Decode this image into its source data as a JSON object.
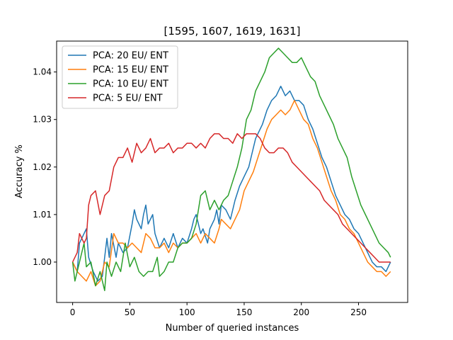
{
  "chart_data": {
    "type": "line",
    "title": "[1595, 1607, 1619, 1631]",
    "xlabel": "Number of queried instances",
    "ylabel": "Accuracy %",
    "xlim": [
      -14,
      293
    ],
    "ylim": [
      0.9915,
      1.0465
    ],
    "xticks": [
      0,
      50,
      100,
      150,
      200,
      250
    ],
    "yticks": [
      1.0,
      1.01,
      1.02,
      1.03,
      1.04
    ],
    "ytick_labels": [
      "1.00",
      "1.01",
      "1.02",
      "1.03",
      "1.04"
    ],
    "grid": false,
    "legend_position": "top-left",
    "series": [
      {
        "name": "PCA: 20 EU/ ENT",
        "color": "#1f77b4",
        "points": [
          [
            0,
            1.0
          ],
          [
            4,
            0.998
          ],
          [
            6,
            1.004
          ],
          [
            10,
            1.006
          ],
          [
            12,
            1.007
          ],
          [
            14,
            1.001
          ],
          [
            18,
            0.998
          ],
          [
            22,
            0.996
          ],
          [
            26,
            0.997
          ],
          [
            30,
            1.005
          ],
          [
            32,
            1.001
          ],
          [
            34,
            1.006
          ],
          [
            38,
            1.001
          ],
          [
            40,
            1.004
          ],
          [
            44,
            1.002
          ],
          [
            48,
            1.003
          ],
          [
            52,
            1.008
          ],
          [
            54,
            1.011
          ],
          [
            56,
            1.009
          ],
          [
            60,
            1.007
          ],
          [
            62,
            1.01
          ],
          [
            64,
            1.012
          ],
          [
            66,
            1.008
          ],
          [
            70,
            1.01
          ],
          [
            72,
            1.006
          ],
          [
            76,
            1.003
          ],
          [
            80,
            1.005
          ],
          [
            84,
            1.003
          ],
          [
            88,
            1.006
          ],
          [
            92,
            1.003
          ],
          [
            96,
            1.005
          ],
          [
            100,
            1.004
          ],
          [
            104,
            1.007
          ],
          [
            106,
            1.009
          ],
          [
            108,
            1.01
          ],
          [
            112,
            1.006
          ],
          [
            114,
            1.007
          ],
          [
            118,
            1.004
          ],
          [
            120,
            1.007
          ],
          [
            124,
            1.009
          ],
          [
            126,
            1.011
          ],
          [
            128,
            1.008
          ],
          [
            130,
            1.012
          ],
          [
            134,
            1.011
          ],
          [
            138,
            1.009
          ],
          [
            142,
            1.013
          ],
          [
            146,
            1.016
          ],
          [
            150,
            1.018
          ],
          [
            154,
            1.02
          ],
          [
            156,
            1.022
          ],
          [
            160,
            1.026
          ],
          [
            162,
            1.027
          ],
          [
            166,
            1.029
          ],
          [
            170,
            1.032
          ],
          [
            174,
            1.034
          ],
          [
            178,
            1.035
          ],
          [
            182,
            1.037
          ],
          [
            186,
            1.035
          ],
          [
            190,
            1.036
          ],
          [
            194,
            1.034
          ],
          [
            198,
            1.034
          ],
          [
            202,
            1.033
          ],
          [
            206,
            1.03
          ],
          [
            210,
            1.028
          ],
          [
            214,
            1.025
          ],
          [
            218,
            1.022
          ],
          [
            222,
            1.02
          ],
          [
            226,
            1.017
          ],
          [
            230,
            1.014
          ],
          [
            234,
            1.012
          ],
          [
            238,
            1.01
          ],
          [
            242,
            1.009
          ],
          [
            246,
            1.007
          ],
          [
            250,
            1.006
          ],
          [
            254,
            1.004
          ],
          [
            258,
            1.002
          ],
          [
            262,
            1.0
          ],
          [
            266,
            0.999
          ],
          [
            270,
            0.999
          ],
          [
            274,
            0.998
          ],
          [
            278,
            1.0
          ]
        ]
      },
      {
        "name": "PCA: 15 EU/ ENT",
        "color": "#ff7f0e",
        "points": [
          [
            0,
            1.0
          ],
          [
            4,
            0.998
          ],
          [
            8,
            0.997
          ],
          [
            12,
            0.996
          ],
          [
            16,
            0.998
          ],
          [
            20,
            0.995
          ],
          [
            24,
            0.996
          ],
          [
            28,
            1.0
          ],
          [
            32,
            0.999
          ],
          [
            36,
            1.006
          ],
          [
            40,
            1.004
          ],
          [
            44,
            1.004
          ],
          [
            48,
            1.003
          ],
          [
            52,
            1.004
          ],
          [
            56,
            1.003
          ],
          [
            60,
            1.002
          ],
          [
            64,
            1.006
          ],
          [
            68,
            1.005
          ],
          [
            72,
            1.003
          ],
          [
            76,
            1.003
          ],
          [
            80,
            1.004
          ],
          [
            84,
            1.002
          ],
          [
            88,
            1.004
          ],
          [
            92,
            1.003
          ],
          [
            96,
            1.004
          ],
          [
            100,
            1.004
          ],
          [
            104,
            1.005
          ],
          [
            108,
            1.006
          ],
          [
            112,
            1.004
          ],
          [
            116,
            1.006
          ],
          [
            120,
            1.005
          ],
          [
            124,
            1.004
          ],
          [
            128,
            1.007
          ],
          [
            130,
            1.009
          ],
          [
            134,
            1.008
          ],
          [
            138,
            1.007
          ],
          [
            142,
            1.009
          ],
          [
            146,
            1.011
          ],
          [
            150,
            1.015
          ],
          [
            154,
            1.017
          ],
          [
            158,
            1.019
          ],
          [
            162,
            1.022
          ],
          [
            166,
            1.025
          ],
          [
            170,
            1.028
          ],
          [
            174,
            1.03
          ],
          [
            178,
            1.031
          ],
          [
            182,
            1.032
          ],
          [
            186,
            1.031
          ],
          [
            190,
            1.032
          ],
          [
            194,
            1.034
          ],
          [
            198,
            1.032
          ],
          [
            202,
            1.03
          ],
          [
            206,
            1.029
          ],
          [
            210,
            1.026
          ],
          [
            214,
            1.024
          ],
          [
            218,
            1.021
          ],
          [
            222,
            1.018
          ],
          [
            226,
            1.015
          ],
          [
            230,
            1.013
          ],
          [
            234,
            1.01
          ],
          [
            238,
            1.009
          ],
          [
            242,
            1.007
          ],
          [
            246,
            1.006
          ],
          [
            250,
            1.004
          ],
          [
            254,
            1.002
          ],
          [
            258,
            1.0
          ],
          [
            262,
            0.999
          ],
          [
            266,
            0.998
          ],
          [
            270,
            0.998
          ],
          [
            274,
            0.997
          ],
          [
            278,
            0.998
          ]
        ]
      },
      {
        "name": "PCA: 10 EU/ ENT",
        "color": "#2ca02c",
        "points": [
          [
            0,
            1.0
          ],
          [
            2,
            0.996
          ],
          [
            6,
            1.0
          ],
          [
            10,
            1.004
          ],
          [
            12,
            0.999
          ],
          [
            16,
            1.0
          ],
          [
            20,
            0.995
          ],
          [
            24,
            0.998
          ],
          [
            28,
            0.994
          ],
          [
            30,
            1.0
          ],
          [
            34,
            0.997
          ],
          [
            38,
            1.0
          ],
          [
            42,
            0.998
          ],
          [
            46,
            1.004
          ],
          [
            50,
            0.999
          ],
          [
            54,
            1.001
          ],
          [
            58,
            0.998
          ],
          [
            62,
            0.997
          ],
          [
            66,
            0.998
          ],
          [
            70,
            0.998
          ],
          [
            74,
            1.001
          ],
          [
            76,
            0.997
          ],
          [
            80,
            0.998
          ],
          [
            84,
            1.0
          ],
          [
            88,
            1.0
          ],
          [
            92,
            1.003
          ],
          [
            96,
            1.004
          ],
          [
            100,
            1.004
          ],
          [
            104,
            1.005
          ],
          [
            108,
            1.008
          ],
          [
            112,
            1.014
          ],
          [
            116,
            1.015
          ],
          [
            120,
            1.011
          ],
          [
            124,
            1.013
          ],
          [
            128,
            1.011
          ],
          [
            132,
            1.013
          ],
          [
            136,
            1.014
          ],
          [
            140,
            1.017
          ],
          [
            144,
            1.02
          ],
          [
            148,
            1.024
          ],
          [
            152,
            1.03
          ],
          [
            156,
            1.032
          ],
          [
            160,
            1.036
          ],
          [
            164,
            1.038
          ],
          [
            168,
            1.04
          ],
          [
            172,
            1.043
          ],
          [
            176,
            1.044
          ],
          [
            180,
            1.045
          ],
          [
            184,
            1.044
          ],
          [
            188,
            1.043
          ],
          [
            192,
            1.042
          ],
          [
            196,
            1.042
          ],
          [
            200,
            1.043
          ],
          [
            204,
            1.041
          ],
          [
            208,
            1.039
          ],
          [
            212,
            1.038
          ],
          [
            216,
            1.035
          ],
          [
            220,
            1.033
          ],
          [
            224,
            1.031
          ],
          [
            228,
            1.029
          ],
          [
            232,
            1.026
          ],
          [
            236,
            1.024
          ],
          [
            240,
            1.022
          ],
          [
            244,
            1.018
          ],
          [
            248,
            1.015
          ],
          [
            252,
            1.012
          ],
          [
            256,
            1.01
          ],
          [
            260,
            1.008
          ],
          [
            264,
            1.006
          ],
          [
            268,
            1.004
          ],
          [
            272,
            1.003
          ],
          [
            276,
            1.002
          ],
          [
            278,
            1.001
          ]
        ]
      },
      {
        "name": "PCA: 5 EU/ ENT",
        "color": "#d62728",
        "points": [
          [
            0,
            1.0
          ],
          [
            4,
            1.002
          ],
          [
            6,
            1.006
          ],
          [
            10,
            1.004
          ],
          [
            12,
            1.005
          ],
          [
            14,
            1.012
          ],
          [
            16,
            1.014
          ],
          [
            20,
            1.015
          ],
          [
            24,
            1.01
          ],
          [
            28,
            1.014
          ],
          [
            32,
            1.015
          ],
          [
            36,
            1.02
          ],
          [
            40,
            1.022
          ],
          [
            44,
            1.022
          ],
          [
            48,
            1.024
          ],
          [
            52,
            1.021
          ],
          [
            56,
            1.025
          ],
          [
            60,
            1.023
          ],
          [
            64,
            1.024
          ],
          [
            68,
            1.026
          ],
          [
            72,
            1.023
          ],
          [
            76,
            1.024
          ],
          [
            80,
            1.024
          ],
          [
            84,
            1.025
          ],
          [
            88,
            1.023
          ],
          [
            92,
            1.024
          ],
          [
            96,
            1.024
          ],
          [
            100,
            1.025
          ],
          [
            104,
            1.025
          ],
          [
            108,
            1.024
          ],
          [
            112,
            1.025
          ],
          [
            116,
            1.024
          ],
          [
            120,
            1.026
          ],
          [
            124,
            1.027
          ],
          [
            128,
            1.027
          ],
          [
            132,
            1.026
          ],
          [
            136,
            1.026
          ],
          [
            140,
            1.025
          ],
          [
            144,
            1.027
          ],
          [
            148,
            1.026
          ],
          [
            152,
            1.027
          ],
          [
            156,
            1.027
          ],
          [
            160,
            1.027
          ],
          [
            164,
            1.026
          ],
          [
            168,
            1.024
          ],
          [
            172,
            1.023
          ],
          [
            176,
            1.023
          ],
          [
            180,
            1.024
          ],
          [
            184,
            1.024
          ],
          [
            188,
            1.023
          ],
          [
            192,
            1.021
          ],
          [
            196,
            1.02
          ],
          [
            200,
            1.019
          ],
          [
            204,
            1.018
          ],
          [
            208,
            1.017
          ],
          [
            212,
            1.016
          ],
          [
            216,
            1.015
          ],
          [
            220,
            1.013
          ],
          [
            224,
            1.012
          ],
          [
            228,
            1.011
          ],
          [
            232,
            1.01
          ],
          [
            236,
            1.008
          ],
          [
            240,
            1.007
          ],
          [
            244,
            1.006
          ],
          [
            248,
            1.005
          ],
          [
            252,
            1.004
          ],
          [
            256,
            1.003
          ],
          [
            260,
            1.002
          ],
          [
            264,
            1.001
          ],
          [
            268,
            1.0
          ],
          [
            272,
            1.0
          ],
          [
            276,
            1.0
          ],
          [
            278,
            1.0
          ]
        ]
      }
    ]
  }
}
